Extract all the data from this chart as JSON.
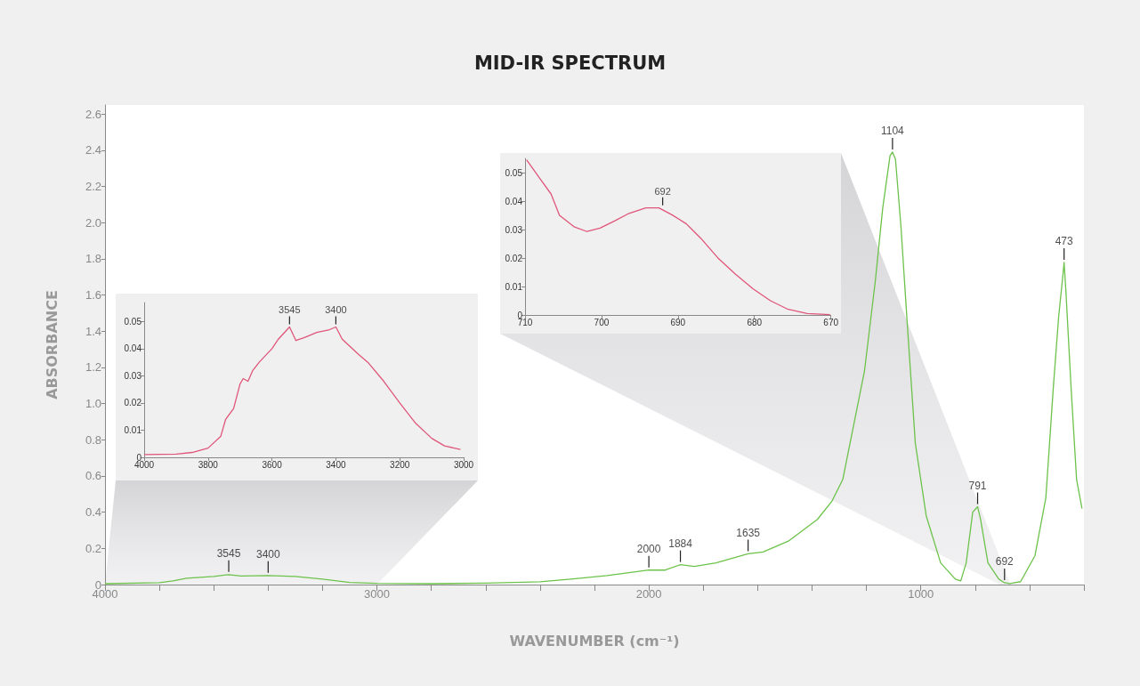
{
  "chart_data": [
    {
      "type": "line",
      "title": "MID-IR SPECTRUM",
      "xlabel": "WAVENUMBER (cm⁻¹)",
      "ylabel": "ABSORBANCE",
      "xlim": [
        4000,
        400
      ],
      "xticks": [
        4000,
        {
          "value": 3800,
          "label": null
        },
        {
          "value": 3600,
          "label": null
        },
        {
          "value": 3400,
          "label": null
        },
        {
          "value": 3200,
          "label": null
        },
        3000,
        {
          "value": 2800,
          "label": null
        },
        {
          "value": 2600,
          "label": null
        },
        {
          "value": 2400,
          "label": null
        },
        {
          "value": 2200,
          "label": null
        },
        2000,
        {
          "value": 1800,
          "label": null
        },
        {
          "value": 1600,
          "label": null
        },
        {
          "value": 1400,
          "label": null
        },
        {
          "value": 1200,
          "label": null
        },
        1000,
        {
          "value": 800,
          "label": null
        },
        {
          "value": 600,
          "label": null
        },
        {
          "value": 400,
          "label": null
        }
      ],
      "ylim": [
        0,
        2.65
      ],
      "yticks": [
        0,
        0.2,
        0.4,
        0.6,
        0.8,
        {
          "value": 1,
          "label": "1.0"
        },
        1.2,
        1.4,
        1.6,
        1.8,
        {
          "value": 2,
          "label": "2.0"
        },
        2.2,
        2.4,
        2.6
      ],
      "series": [
        {
          "color": "#6cc24a",
          "x": [
            4000,
            3800,
            3750,
            3700,
            3600,
            3545,
            3500,
            3400,
            3300,
            3200,
            3100,
            3000,
            2800,
            2600,
            2400,
            2287,
            2153,
            2000,
            1940,
            1884,
            1833,
            1753,
            1635,
            1580,
            1487,
            1380,
            1327,
            1287,
            1247,
            1207,
            1167,
            1140,
            1113,
            1104,
            1093,
            1073,
            1047,
            1020,
            980,
            927,
            873,
            853,
            833,
            809,
            791,
            780,
            753,
            713,
            692,
            673,
            633,
            580,
            540,
            513,
            493,
            478,
            473,
            467,
            447,
            427,
            407
          ],
          "values": [
            0.005,
            0.01,
            0.02,
            0.035,
            0.045,
            0.055,
            0.047,
            0.05,
            0.045,
            0.03,
            0.012,
            0.007,
            0.005,
            0.008,
            0.015,
            0.03,
            0.05,
            0.08,
            0.08,
            0.11,
            0.1,
            0.12,
            0.17,
            0.18,
            0.24,
            0.36,
            0.46,
            0.58,
            0.88,
            1.18,
            1.68,
            2.08,
            2.37,
            2.39,
            2.35,
            1.98,
            1.38,
            0.78,
            0.38,
            0.12,
            0.03,
            0.02,
            0.12,
            0.4,
            0.43,
            0.36,
            0.12,
            0.03,
            0.01,
            0.006,
            0.016,
            0.16,
            0.48,
            1.08,
            1.48,
            1.7,
            1.78,
            1.64,
            1.08,
            0.58,
            0.42
          ]
        }
      ],
      "annotations": [
        {
          "text": "3545",
          "x": 3545,
          "y": 0.055
        },
        {
          "text": "3400",
          "x": 3400,
          "y": 0.05
        },
        {
          "text": "2000",
          "x": 2000,
          "y": 0.08
        },
        {
          "text": "1884",
          "x": 1884,
          "y": 0.11
        },
        {
          "text": "1635",
          "x": 1635,
          "y": 0.17
        },
        {
          "text": "1104",
          "x": 1104,
          "y": 2.39
        },
        {
          "text": "791",
          "x": 791,
          "y": 0.43
        },
        {
          "text": "692",
          "x": 692,
          "y": 0.01
        },
        {
          "text": "473",
          "x": 473,
          "y": 1.78
        }
      ]
    },
    {
      "type": "line",
      "xlim": [
        4000,
        3000
      ],
      "xticks": [
        4000,
        3800,
        3600,
        3400,
        3200,
        3000
      ],
      "ylim": [
        0,
        0.057
      ],
      "yticks": [
        0,
        0.01,
        0.02,
        0.03,
        0.04,
        0.05
      ],
      "series": [
        {
          "color": "#e0567a",
          "x": [
            4000,
            3900,
            3850,
            3800,
            3760,
            3745,
            3720,
            3700,
            3690,
            3675,
            3660,
            3640,
            3600,
            3580,
            3545,
            3525,
            3500,
            3460,
            3420,
            3400,
            3380,
            3330,
            3300,
            3250,
            3200,
            3150,
            3100,
            3060,
            3010
          ],
          "values": [
            0.001,
            0.0012,
            0.0018,
            0.0034,
            0.0078,
            0.014,
            0.018,
            0.027,
            0.029,
            0.028,
            0.032,
            0.035,
            0.04,
            0.0435,
            0.048,
            0.043,
            0.044,
            0.046,
            0.047,
            0.048,
            0.0435,
            0.038,
            0.035,
            0.028,
            0.02,
            0.0125,
            0.007,
            0.0042,
            0.0029
          ]
        }
      ],
      "annotations": [
        {
          "text": "3545",
          "x": 3545,
          "y": 0.048
        },
        {
          "text": "3400",
          "x": 3400,
          "y": 0.048
        }
      ]
    },
    {
      "type": "line",
      "xlim": [
        710,
        670
      ],
      "xticks": [
        710,
        700,
        690,
        680,
        670
      ],
      "ylim": [
        0,
        0.055
      ],
      "yticks": [
        0,
        0.01,
        0.02,
        0.03,
        0.04,
        0.05
      ],
      "series": [
        {
          "color": "#e0567a",
          "x": [
            709.8,
            708,
            706.6,
            705.5,
            703.6,
            701.9,
            700.2,
            698.3,
            696.4,
            694.2,
            692.5,
            690.8,
            688.9,
            687,
            684.8,
            682.5,
            680.2,
            677.9,
            675.7,
            673.1,
            670.1
          ],
          "values": [
            0.0545,
            0.0477,
            0.0425,
            0.035,
            0.031,
            0.0293,
            0.0305,
            0.033,
            0.0357,
            0.0376,
            0.0376,
            0.0352,
            0.032,
            0.0269,
            0.0201,
            0.0144,
            0.0092,
            0.005,
            0.0021,
            0.0005,
            0.0001
          ]
        }
      ],
      "annotations": [
        {
          "text": "692",
          "x": 692,
          "y": 0.0376
        }
      ]
    }
  ]
}
